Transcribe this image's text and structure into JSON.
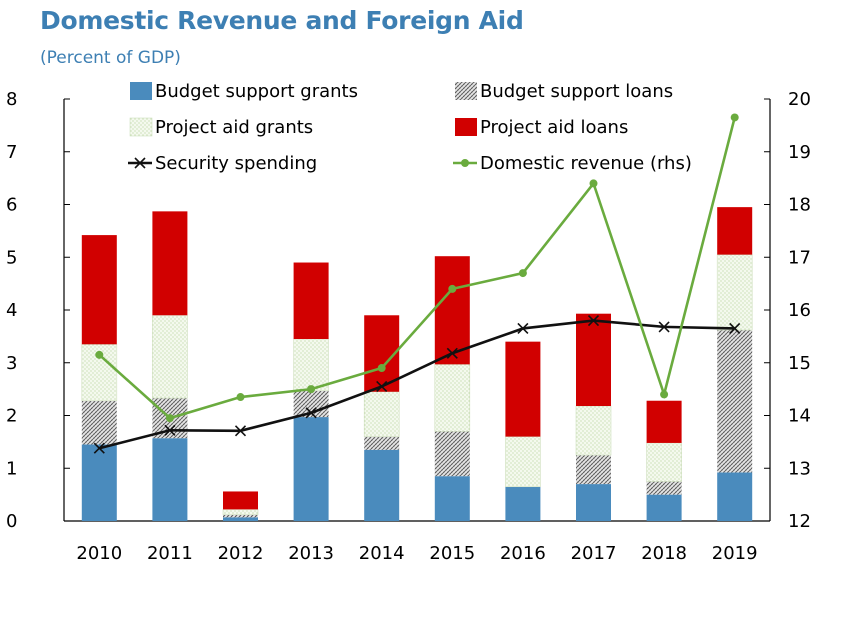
{
  "title": "Domestic Revenue and Foreign Aid",
  "subtitle": "(Percent of GDP)",
  "colors": {
    "budget_support_grants": "#4a8bbd",
    "budget_support_loans": "#9a9a9a",
    "project_aid_grants": "#eef5e4",
    "project_aid_loans": "#d10000",
    "security_spending": "#111111",
    "domestic_revenue": "#6aab3e"
  },
  "chart_data": {
    "type": "bar",
    "stacked": true,
    "categories": [
      "2010",
      "2011",
      "2012",
      "2013",
      "2014",
      "2015",
      "2016",
      "2017",
      "2018",
      "2019"
    ],
    "ylim": [
      0,
      8
    ],
    "y2lim": [
      12,
      20
    ],
    "yticks": [
      "0",
      "1",
      "2",
      "3",
      "4",
      "5",
      "6",
      "7",
      "8"
    ],
    "y2ticks": [
      "12",
      "13",
      "14",
      "15",
      "16",
      "17",
      "18",
      "19",
      "20"
    ],
    "series": [
      {
        "name": "Budget support grants",
        "kind": "bar",
        "axis": "left",
        "values": [
          1.45,
          1.57,
          0.07,
          1.97,
          1.35,
          0.85,
          0.65,
          0.7,
          0.5,
          0.92
        ]
      },
      {
        "name": "Budget support loans",
        "kind": "bar",
        "axis": "left",
        "values": [
          0.83,
          0.76,
          0.05,
          0.5,
          0.25,
          0.85,
          0.0,
          0.55,
          0.25,
          2.7
        ]
      },
      {
        "name": "Project aid grants",
        "kind": "bar",
        "axis": "left",
        "values": [
          1.07,
          1.57,
          0.1,
          0.98,
          0.85,
          1.27,
          0.95,
          0.93,
          0.73,
          1.43
        ]
      },
      {
        "name": "Project aid loans",
        "kind": "bar",
        "axis": "left",
        "values": [
          2.07,
          1.97,
          0.34,
          1.45,
          1.45,
          2.05,
          1.8,
          1.75,
          0.8,
          0.9
        ]
      },
      {
        "name": "Security spending",
        "kind": "line",
        "axis": "left",
        "values": [
          1.38,
          1.72,
          1.71,
          2.05,
          2.55,
          3.18,
          3.65,
          3.8,
          3.68,
          3.65
        ]
      },
      {
        "name": "Domestic revenue (rhs)",
        "kind": "line",
        "axis": "right",
        "values": [
          15.15,
          13.95,
          14.35,
          14.5,
          14.9,
          16.4,
          16.7,
          18.4,
          14.4,
          19.65
        ]
      }
    ],
    "legend": {
      "position": "top",
      "entries": [
        "Budget support grants",
        "Budget support loans",
        "Project aid grants",
        "Project aid loans",
        "Security spending",
        "Domestic revenue (rhs)"
      ]
    }
  }
}
